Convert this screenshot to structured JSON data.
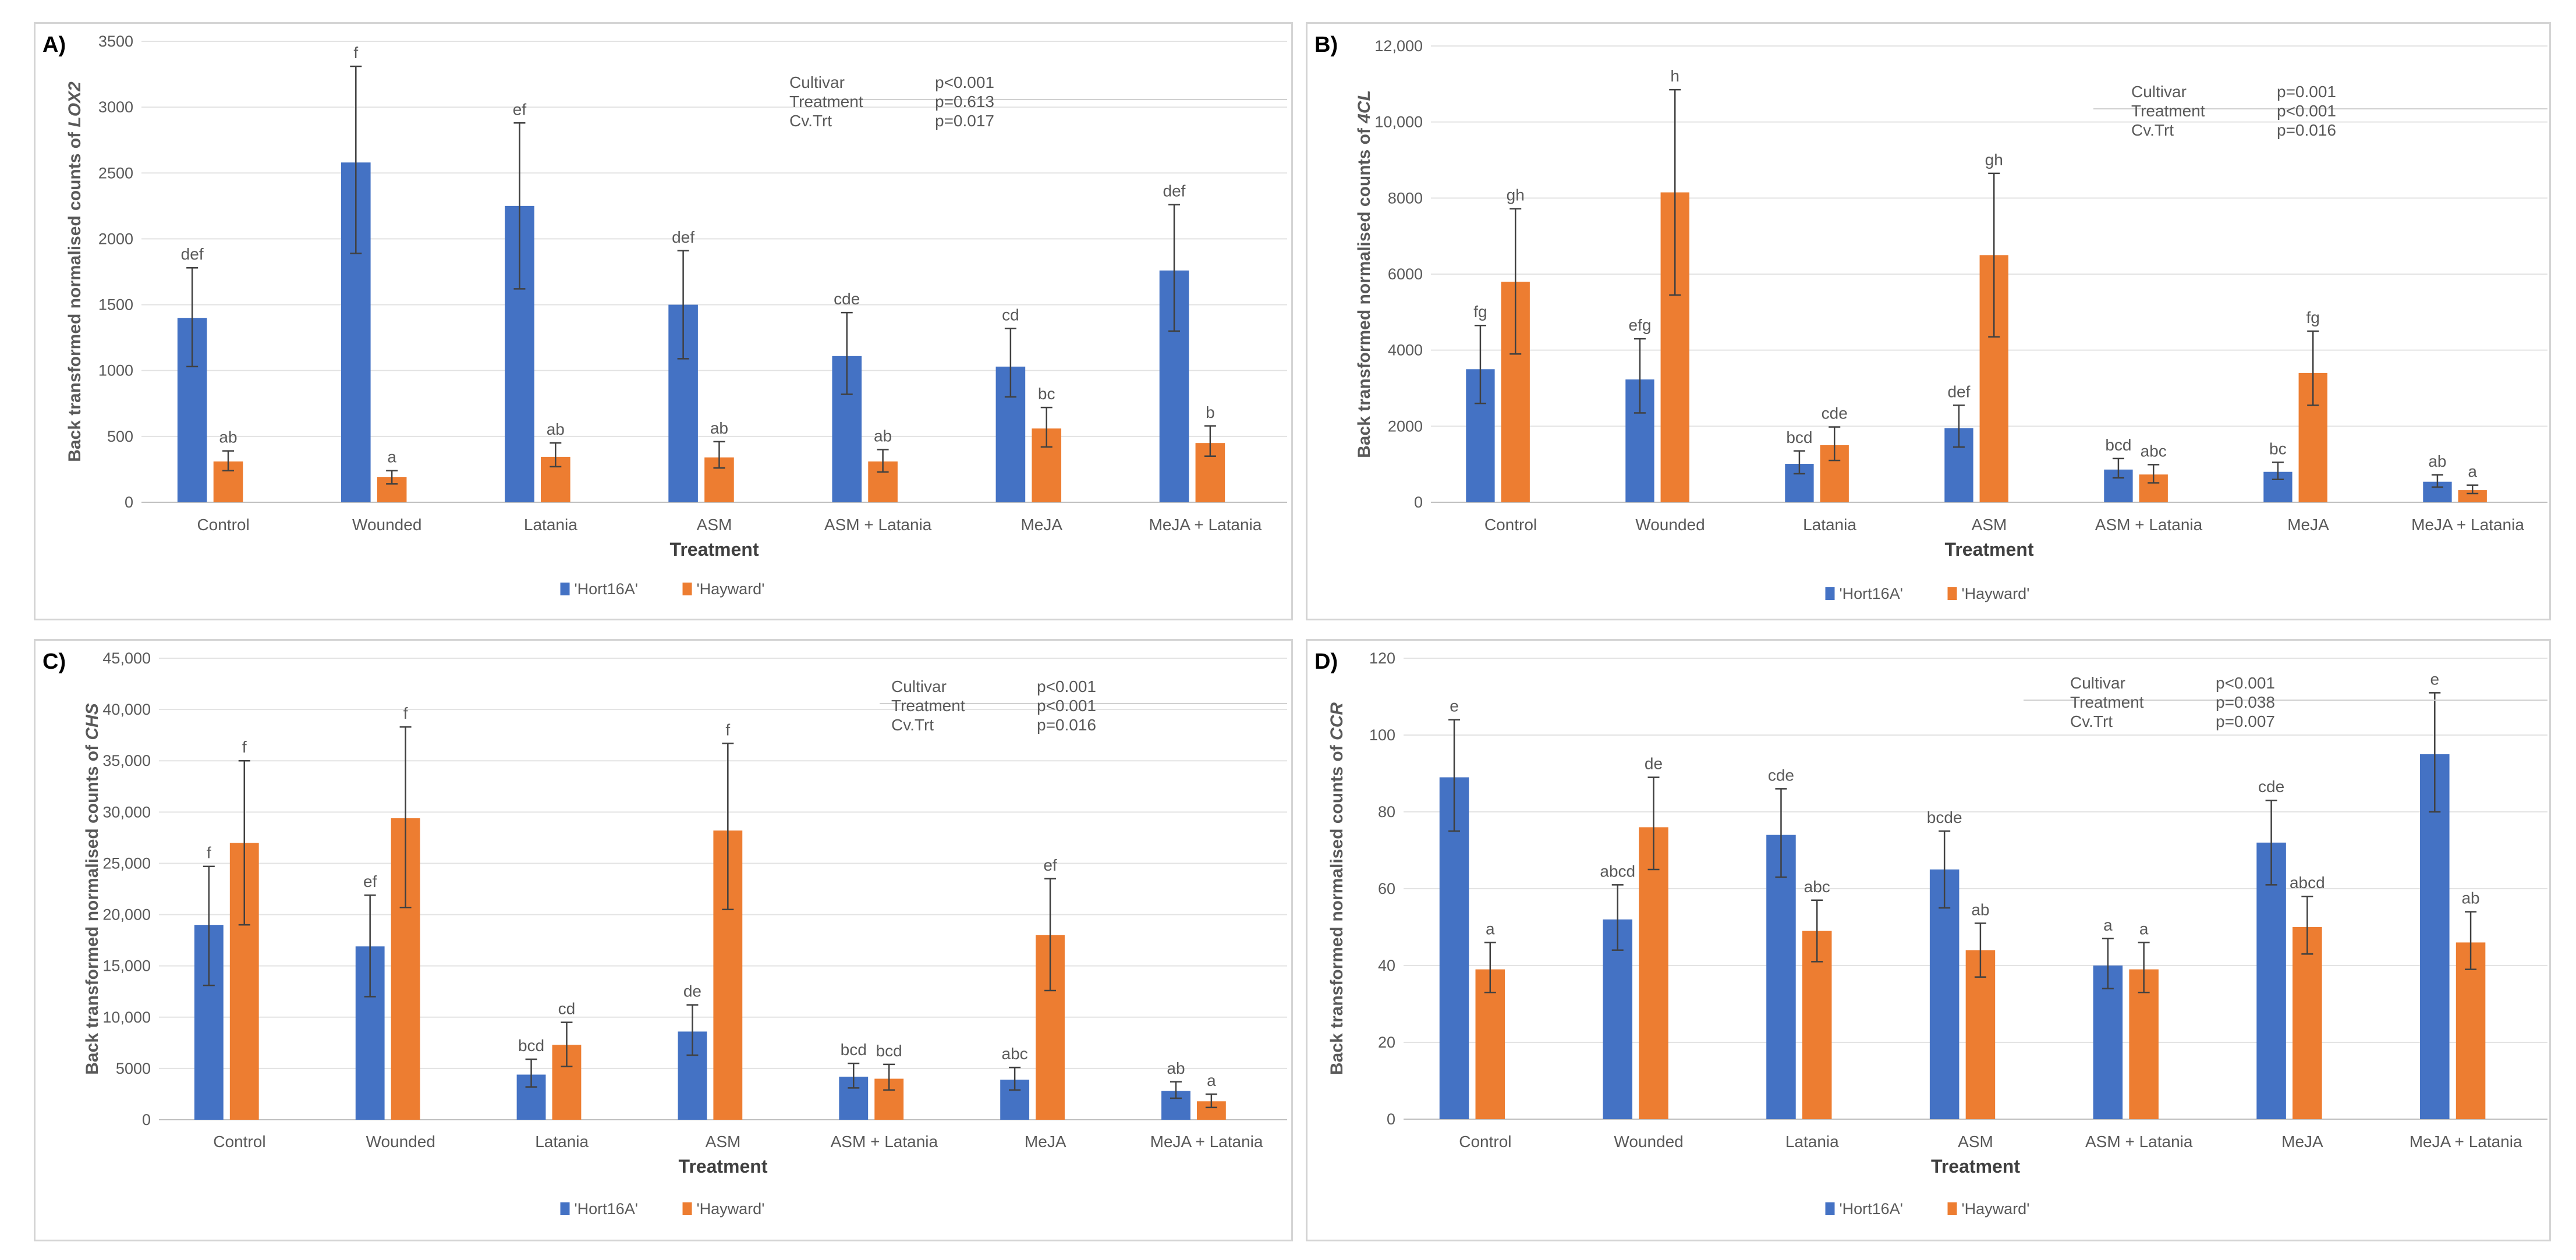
{
  "colors": {
    "hort": "#4472c4",
    "hayward": "#ed7d31",
    "error": "#404040",
    "axis": "#c8c8c8",
    "text": "#595959"
  },
  "legend": [
    "'Hort16A'",
    "'Hayward'"
  ],
  "xlabel": "Treatment",
  "categories": [
    "Control",
    "Wounded",
    "Latania",
    "ASM",
    "ASM + Latania",
    "MeJA",
    "MeJA + Latania"
  ],
  "chart_data": [
    {
      "panel": "A)",
      "type": "bar",
      "ylabel_prefix": "Back transformed normalised counts of ",
      "gene": "LOX2",
      "xlabel": "Treatment",
      "categories": [
        "Control",
        "Wounded",
        "Latania",
        "ASM",
        "ASM + Latania",
        "MeJA",
        "MeJA + Latania"
      ],
      "ylim": [
        0,
        3500
      ],
      "ticks": [
        {
          "v": 0,
          "t": "0"
        },
        {
          "v": 500,
          "t": "500"
        },
        {
          "v": 1000,
          "t": "1000"
        },
        {
          "v": 1500,
          "t": "1500"
        },
        {
          "v": 2000,
          "t": "2000"
        },
        {
          "v": 2500,
          "t": "2500"
        },
        {
          "v": 3000,
          "t": "3000"
        },
        {
          "v": 3500,
          "t": "3500"
        }
      ],
      "series": [
        {
          "name": "'Hort16A'",
          "values": [
            1400,
            2580,
            2250,
            1500,
            1110,
            1030,
            1760
          ],
          "lo": [
            1030,
            1890,
            1620,
            1090,
            820,
            800,
            1300
          ],
          "hi": [
            1780,
            3310,
            2880,
            1910,
            1440,
            1320,
            2260
          ],
          "letters": [
            "def",
            "f",
            "ef",
            "def",
            "cde",
            "cd",
            "def"
          ]
        },
        {
          "name": "'Hayward'",
          "values": [
            310,
            190,
            345,
            340,
            310,
            560,
            450
          ],
          "lo": [
            240,
            140,
            270,
            260,
            230,
            420,
            350
          ],
          "hi": [
            390,
            240,
            450,
            460,
            400,
            720,
            580
          ],
          "letters": [
            "ab",
            "a",
            "ab",
            "ab",
            "ab",
            "bc",
            "b"
          ]
        }
      ],
      "stats": [
        {
          "term": "Cultivar",
          "p": "p<0.001"
        },
        {
          "term": "Treatment",
          "p": "p=0.613"
        },
        {
          "term": "Cv.Trt",
          "p": "p=0.017"
        }
      ]
    },
    {
      "panel": "B)",
      "type": "bar",
      "ylabel_prefix": "Back transformed normalised counts of ",
      "gene": "4CL",
      "xlabel": "Treatment",
      "categories": [
        "Control",
        "Wounded",
        "Latania",
        "ASM",
        "ASM + Latania",
        "MeJA",
        "MeJA + Latania"
      ],
      "ylim": [
        0,
        12000
      ],
      "ticks": [
        {
          "v": 0,
          "t": "0"
        },
        {
          "v": 2000,
          "t": "2000"
        },
        {
          "v": 4000,
          "t": "4000"
        },
        {
          "v": 6000,
          "t": "6000"
        },
        {
          "v": 8000,
          "t": "8000"
        },
        {
          "v": 10000,
          "t": "10,000"
        },
        {
          "v": 12000,
          "t": "12,000"
        }
      ],
      "series": [
        {
          "name": "'Hort16A'",
          "values": [
            3500,
            3230,
            1010,
            1950,
            860,
            800,
            540
          ],
          "lo": [
            2600,
            2350,
            750,
            1450,
            640,
            600,
            400
          ],
          "hi": [
            4650,
            4300,
            1350,
            2550,
            1150,
            1050,
            720
          ],
          "letters": [
            "fg",
            "efg",
            "bcd",
            "def",
            "bcd",
            "bc",
            "ab"
          ]
        },
        {
          "name": "'Hayward'",
          "values": [
            5800,
            8150,
            1500,
            6500,
            730,
            3400,
            320
          ],
          "lo": [
            3900,
            5450,
            1100,
            4350,
            510,
            2550,
            230
          ],
          "hi": [
            7720,
            10850,
            1980,
            8650,
            990,
            4500,
            450
          ],
          "letters": [
            "gh",
            "h",
            "cde",
            "gh",
            "abc",
            "fg",
            "a"
          ]
        }
      ],
      "stats": [
        {
          "term": "Cultivar",
          "p": "p=0.001"
        },
        {
          "term": "Treatment",
          "p": "p<0.001"
        },
        {
          "term": "Cv.Trt",
          "p": "p=0.016"
        }
      ]
    },
    {
      "panel": "C)",
      "type": "bar",
      "ylabel_prefix": "Back transformed normalised counts of ",
      "gene": "CHS",
      "xlabel": "Treatment",
      "categories": [
        "Control",
        "Wounded",
        "Latania",
        "ASM",
        "ASM + Latania",
        "MeJA",
        "MeJA + Latania"
      ],
      "ylim": [
        0,
        45000
      ],
      "ticks": [
        {
          "v": 0,
          "t": "0"
        },
        {
          "v": 5000,
          "t": "5000"
        },
        {
          "v": 10000,
          "t": "10,000"
        },
        {
          "v": 15000,
          "t": "15,000"
        },
        {
          "v": 20000,
          "t": "20,000"
        },
        {
          "v": 25000,
          "t": "25,000"
        },
        {
          "v": 30000,
          "t": "30,000"
        },
        {
          "v": 35000,
          "t": "35,000"
        },
        {
          "v": 40000,
          "t": "40,000"
        },
        {
          "v": 45000,
          "t": "45,000"
        }
      ],
      "series": [
        {
          "name": "'Hort16A'",
          "values": [
            19000,
            16900,
            4400,
            8600,
            4200,
            3900,
            2800
          ],
          "lo": [
            13100,
            12000,
            3200,
            6300,
            3100,
            2900,
            2100
          ],
          "hi": [
            24700,
            21900,
            5900,
            11200,
            5500,
            5100,
            3700
          ],
          "letters": [
            "f",
            "ef",
            "bcd",
            "de",
            "bcd",
            "abc",
            "ab"
          ]
        },
        {
          "name": "'Hayward'",
          "values": [
            27000,
            29400,
            7300,
            28200,
            4000,
            18000,
            1800
          ],
          "lo": [
            19000,
            20700,
            5200,
            20500,
            2900,
            12600,
            1200
          ],
          "hi": [
            35000,
            38300,
            9500,
            36700,
            5400,
            23500,
            2500
          ],
          "letters": [
            "f",
            "f",
            "cd",
            "f",
            "bcd",
            "ef",
            "a"
          ]
        }
      ],
      "stats": [
        {
          "term": "Cultivar",
          "p": "p<0.001"
        },
        {
          "term": "Treatment",
          "p": "p<0.001"
        },
        {
          "term": "Cv.Trt",
          "p": "p=0.016"
        }
      ]
    },
    {
      "panel": "D)",
      "type": "bar",
      "ylabel_prefix": "Back transformed normalised counts of ",
      "gene": "CCR",
      "xlabel": "Treatment",
      "categories": [
        "Control",
        "Wounded",
        "Latania",
        "ASM",
        "ASM + Latania",
        "MeJA",
        "MeJA + Latania"
      ],
      "ylim": [
        0,
        120
      ],
      "ticks": [
        {
          "v": 0,
          "t": "0"
        },
        {
          "v": 20,
          "t": "20"
        },
        {
          "v": 40,
          "t": "40"
        },
        {
          "v": 60,
          "t": "60"
        },
        {
          "v": 80,
          "t": "80"
        },
        {
          "v": 100,
          "t": "100"
        },
        {
          "v": 120,
          "t": "120"
        }
      ],
      "series": [
        {
          "name": "'Hort16A'",
          "values": [
            89,
            52,
            74,
            65,
            40,
            72,
            95
          ],
          "lo": [
            75,
            44,
            63,
            55,
            34,
            61,
            80
          ],
          "hi": [
            104,
            61,
            86,
            75,
            47,
            83,
            111
          ],
          "letters": [
            "e",
            "abcd",
            "cde",
            "bcde",
            "a",
            "cde",
            "e"
          ]
        },
        {
          "name": "'Hayward'",
          "values": [
            39,
            76,
            49,
            44,
            39,
            50,
            46
          ],
          "lo": [
            33,
            65,
            41,
            37,
            33,
            43,
            39
          ],
          "hi": [
            46,
            89,
            57,
            51,
            46,
            58,
            54
          ],
          "letters": [
            "a",
            "de",
            "abc",
            "ab",
            "a",
            "abcd",
            "ab"
          ]
        }
      ],
      "stats": [
        {
          "term": "Cultivar",
          "p": "p<0.001"
        },
        {
          "term": "Treatment",
          "p": "p=0.038"
        },
        {
          "term": "Cv.Trt",
          "p": "p=0.007"
        }
      ]
    }
  ]
}
